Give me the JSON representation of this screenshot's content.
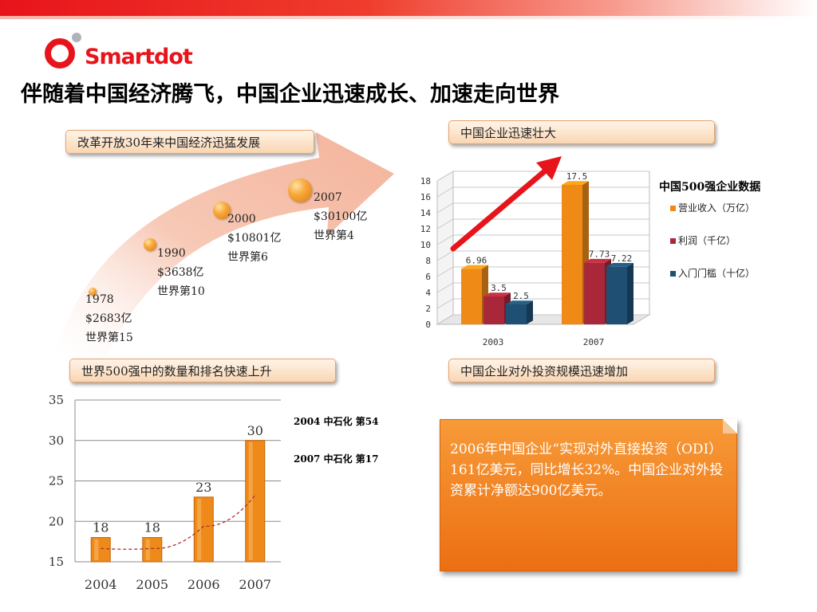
{
  "brand": {
    "name": "Smartdot",
    "color": "#e8141b"
  },
  "title": "伴随着中国经济腾飞，中国企业迅速成长、加速走向世界",
  "sections": {
    "economy": "改革开放30年来中国经济迅猛发展",
    "growth": "中国企业迅速壮大",
    "ranking": "世界500强中的数量和排名快速上升",
    "investment": "中国企业对外投资规模迅速增加"
  },
  "milestones": [
    {
      "year": "1978",
      "gdp": "$2683亿",
      "rank": "世界第15"
    },
    {
      "year": "1990",
      "gdp": "$3638亿",
      "rank": "世界第10"
    },
    {
      "year": "2000",
      "gdp": "$10801亿",
      "rank": "世界第6"
    },
    {
      "year": "2007",
      "gdp": "$30100亿",
      "rank": "世界第4"
    }
  ],
  "notes": [
    "2004 中石化  第54",
    "2007 中石化  第17"
  ],
  "odi_text": "2006年中国企业“实现对外直接投资（ODI）161亿美元，同比增长32%。中国企业对外投资累计净额达900亿美元。",
  "chart_data": [
    {
      "type": "bar",
      "title": "中国500强企业数据",
      "categories": [
        "2003",
        "2007"
      ],
      "series": [
        {
          "name": "营业收入（万亿）",
          "values": [
            6.96,
            17.5
          ],
          "color": "#f08a16"
        },
        {
          "name": "利润（千亿）",
          "values": [
            3.5,
            7.73
          ],
          "color": "#a8283a"
        },
        {
          "name": "入门门槛（十亿）",
          "values": [
            2.5,
            7.22
          ],
          "color": "#1f4f73"
        }
      ],
      "value_labels": [
        "6.96",
        "3.5",
        "2.5",
        "17.5",
        "7.73",
        "7.22"
      ],
      "ylim": [
        0,
        18
      ],
      "yticks": [
        "0",
        "2",
        "4",
        "6",
        "8",
        "10",
        "12",
        "14",
        "16",
        "18"
      ],
      "grid": true,
      "legend": "right"
    },
    {
      "type": "bar",
      "categories": [
        "2004",
        "2005",
        "2006",
        "2007"
      ],
      "values": [
        18,
        18,
        23,
        30
      ],
      "value_labels": [
        "18",
        "18",
        "23",
        "30"
      ],
      "ylim": [
        15,
        35
      ],
      "yticks": [
        "15",
        "20",
        "25",
        "30",
        "35"
      ],
      "color": "#ee8a1a",
      "grid": true,
      "trendline": "dashed"
    }
  ]
}
